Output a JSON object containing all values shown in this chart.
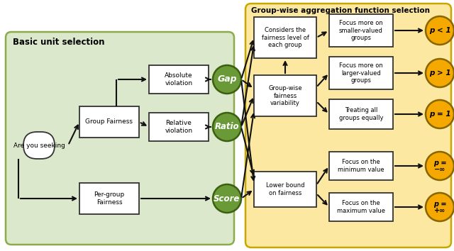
{
  "bg_color": "#ffffff",
  "left_panel_bg": "#dce8cc",
  "right_panel_bg": "#fce8a0",
  "left_panel_border": "#8aac4a",
  "right_panel_border": "#c8a800",
  "box_bg": "#ffffff",
  "box_border": "#333333",
  "green_circle_color": "#6a9a38",
  "orange_circle_color": "#f5a800",
  "arrow_color": "#111111",
  "title_left": "Basic unit selection",
  "title_right": "Group-wise aggregation function selection",
  "node_are_you": "Are you seeking",
  "node_group_fair": "Group Fairness",
  "node_per_group": "Per-group\nFairness",
  "node_abs_viol": "Absolute\nviolation",
  "node_rel_viol": "Relative\nviolation",
  "circle_gap": "Gap",
  "circle_ratio": "Ratio",
  "circle_score": "Score",
  "node_considers": "Considers the\nfairness level of\neach group",
  "node_gw_var": "Group-wise\nfairness\nvariability",
  "node_lower": "Lower bound\non fairness",
  "node_focus_small": "Focus more on\nsmaller-valued\ngroups",
  "node_focus_large": "Focus more on\nlarger-valued\ngroups",
  "node_treat_equal": "Treating all\ngroups equally",
  "node_focus_min": "Focus on the\nminimum value",
  "node_focus_max": "Focus on the\nmaximum value"
}
